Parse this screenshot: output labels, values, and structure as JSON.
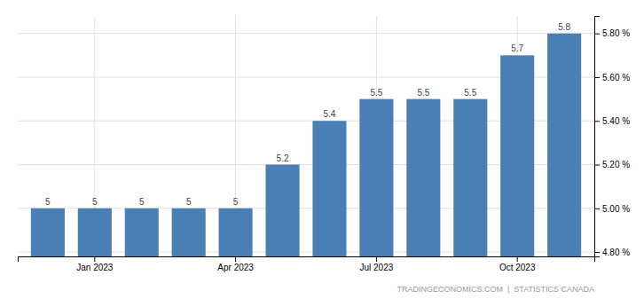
{
  "chart_data": {
    "type": "bar",
    "categories": [
      null,
      "Jan 2023",
      null,
      null,
      "Apr 2023",
      null,
      null,
      "Jul 2023",
      null,
      null,
      "Oct 2023",
      null
    ],
    "values": [
      5.0,
      5.0,
      5.0,
      5.0,
      5.0,
      5.2,
      5.4,
      5.5,
      5.5,
      5.5,
      5.7,
      5.8
    ],
    "color": "#4a7fb5",
    "ylim": [
      4.78,
      5.88
    ],
    "yticks": [
      {
        "value": 4.8,
        "label": "4.80 %"
      },
      {
        "value": 5.0,
        "label": "5.00 %"
      },
      {
        "value": 5.2,
        "label": "5.20 %"
      },
      {
        "value": 5.4,
        "label": "5.40 %"
      },
      {
        "value": 5.6,
        "label": "5.60 %"
      },
      {
        "value": 5.8,
        "label": "5.80 %"
      }
    ],
    "grid": true,
    "data_labels": true,
    "annotations": [
      "TRADINGECONOMICS.COM  |  STATISTICS CANADA"
    ]
  }
}
